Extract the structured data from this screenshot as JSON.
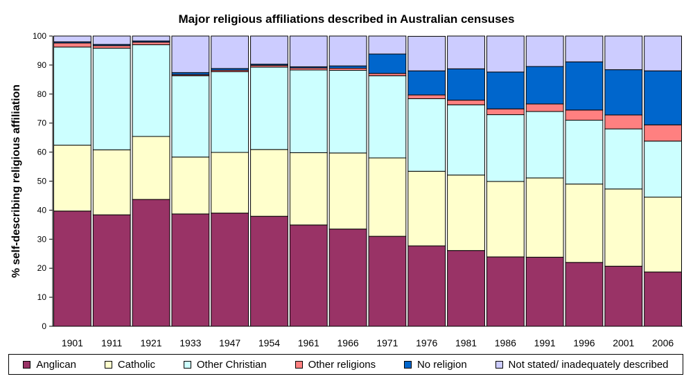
{
  "chart_data": {
    "type": "bar",
    "stacked": true,
    "title": "Major religious affiliations described in Australian censuses",
    "ylabel": "% self-describing religious affiliation",
    "xlabel": "",
    "ylim": [
      0,
      100
    ],
    "yticks": [
      0,
      10,
      20,
      30,
      40,
      50,
      60,
      70,
      80,
      90,
      100
    ],
    "grid": false,
    "legend_position": "bottom",
    "categories": [
      "1901",
      "1911",
      "1921",
      "1933",
      "1947",
      "1954",
      "1961",
      "1966",
      "1971",
      "1976",
      "1981",
      "1986",
      "1991",
      "1996",
      "2001",
      "2006"
    ],
    "series": [
      {
        "name": "Anglican",
        "color": "#993366",
        "values": [
          39.7,
          38.4,
          43.7,
          38.7,
          39.0,
          37.9,
          34.9,
          33.5,
          31.0,
          27.7,
          26.1,
          23.9,
          23.8,
          22.0,
          20.7,
          18.7
        ]
      },
      {
        "name": "Catholic",
        "color": "#FFFFCC",
        "values": [
          22.7,
          22.4,
          21.7,
          19.6,
          20.9,
          23.0,
          24.9,
          26.2,
          27.0,
          25.7,
          26.0,
          26.0,
          27.3,
          27.0,
          26.6,
          25.8
        ]
      },
      {
        "name": "Other Christian",
        "color": "#CCFFFF",
        "values": [
          33.8,
          35.0,
          31.6,
          28.0,
          27.8,
          28.4,
          28.5,
          28.5,
          28.3,
          25.0,
          24.2,
          23.0,
          22.9,
          22.0,
          20.7,
          19.3
        ]
      },
      {
        "name": "Other religions",
        "color": "#FF8080",
        "values": [
          1.4,
          0.9,
          0.9,
          0.4,
          0.5,
          0.6,
          0.7,
          0.7,
          0.8,
          1.3,
          1.6,
          2.0,
          2.6,
          3.5,
          4.8,
          5.6
        ]
      },
      {
        "name": "No religion",
        "color": "#0066CC",
        "values": [
          0.4,
          0.4,
          0.4,
          0.7,
          0.6,
          0.4,
          0.4,
          0.8,
          6.7,
          8.3,
          10.8,
          12.7,
          12.9,
          16.6,
          15.6,
          18.6
        ]
      },
      {
        "name": "Not stated/ inadequately described",
        "color": "#CCCCFF",
        "values": [
          2.0,
          2.9,
          1.7,
          12.6,
          11.2,
          9.7,
          10.6,
          10.3,
          6.2,
          11.9,
          11.3,
          12.4,
          10.5,
          8.9,
          11.6,
          12.0
        ]
      }
    ]
  }
}
